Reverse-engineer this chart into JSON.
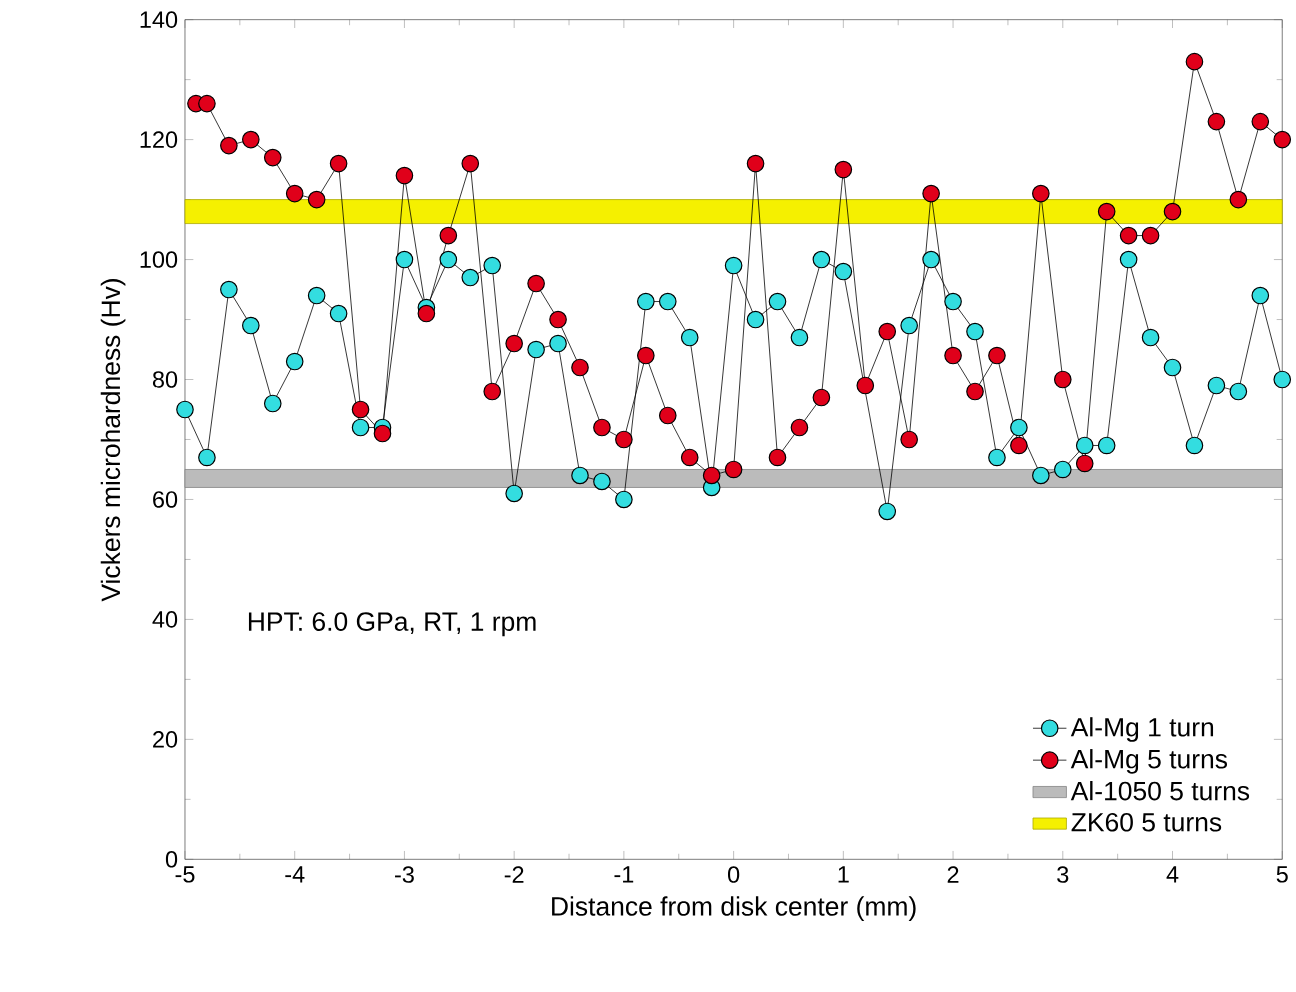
{
  "chart_data": {
    "type": "line",
    "xlabel": "Distance from disk center (mm)",
    "ylabel": "Vickers microhardness (Hv)",
    "xlim": [
      -5,
      5
    ],
    "xticks": [
      -5,
      -4,
      -3,
      -2,
      -1,
      0,
      1,
      2,
      3,
      4,
      5
    ],
    "ylim": [
      0,
      140
    ],
    "yticks": [
      0,
      20,
      40,
      60,
      80,
      100,
      120,
      140
    ],
    "marker": "circle",
    "line_style": "solid",
    "legend": "bottom right",
    "grid": false,
    "series": [
      {
        "name": "Al-Mg 1 turn",
        "color": "#33dde0",
        "x": [
          -5,
          -4.8,
          -4.6,
          -4.4,
          -4.2,
          -4.0,
          -3.8,
          -3.6,
          -3.4,
          -3.2,
          -3.0,
          -2.8,
          -2.6,
          -2.4,
          -2.2,
          -2.0,
          -1.8,
          -1.6,
          -1.4,
          -1.2,
          -1.0,
          -0.8,
          -0.6,
          -0.4,
          -0.2,
          0,
          0.2,
          0.4,
          0.6,
          0.8,
          1.0,
          1.4,
          1.6,
          1.8,
          2.0,
          2.2,
          2.4,
          2.6,
          2.8,
          3.0,
          3.2,
          3.4,
          3.6,
          3.8,
          4.0,
          4.2,
          4.4,
          4.6,
          4.8,
          5.0
        ],
        "values": [
          75,
          67,
          95,
          89,
          76,
          83,
          94,
          91,
          72,
          72,
          100,
          92,
          100,
          97,
          99,
          61,
          85,
          86,
          64,
          63,
          60,
          93,
          93,
          87,
          62,
          99,
          90,
          93,
          87,
          100,
          98,
          58,
          89,
          100,
          93,
          88,
          67,
          72,
          64,
          65,
          69,
          69,
          100,
          87,
          82,
          69,
          79,
          78,
          94,
          80
        ]
      },
      {
        "name": "Al-Mg 5 turns",
        "color": "#e0001a",
        "x": [
          -4.9,
          -4.8,
          -4.6,
          -4.4,
          -4.2,
          -4.0,
          -3.8,
          -3.6,
          -3.4,
          -3.2,
          -3.0,
          -2.8,
          -2.6,
          -2.4,
          -2.2,
          -2.0,
          -1.8,
          -1.6,
          -1.4,
          -1.2,
          -1.0,
          -0.8,
          -0.6,
          -0.4,
          -0.2,
          0,
          0.2,
          0.4,
          0.6,
          0.8,
          1.0,
          1.2,
          1.4,
          1.6,
          1.8,
          2.0,
          2.2,
          2.4,
          2.6,
          2.8,
          3.0,
          3.2,
          3.4,
          3.6,
          3.8,
          4.0,
          4.2,
          4.4,
          4.6,
          4.8,
          5.0
        ],
        "values": [
          126,
          126,
          119,
          120,
          117,
          111,
          110,
          116,
          75,
          71,
          114,
          91,
          104,
          116,
          78,
          86,
          96,
          90,
          82,
          72,
          70,
          84,
          74,
          67,
          64,
          65,
          116,
          67,
          72,
          77,
          115,
          79,
          88,
          70,
          111,
          84,
          78,
          84,
          69,
          111,
          80,
          66,
          108,
          104,
          104,
          108,
          133,
          123,
          110,
          123,
          120
        ]
      }
    ],
    "bands": [
      {
        "axis": "y",
        "from": 62,
        "to": 65,
        "label": "Al-1050 5 turns",
        "color": "#bbbbbb"
      },
      {
        "axis": "y",
        "from": 106,
        "to": 110,
        "label": "ZK60 5 turns",
        "color": "#f5f000"
      }
    ],
    "annotations": [
      "HPT: 6.0 GPa, RT, 1 rpm"
    ]
  }
}
